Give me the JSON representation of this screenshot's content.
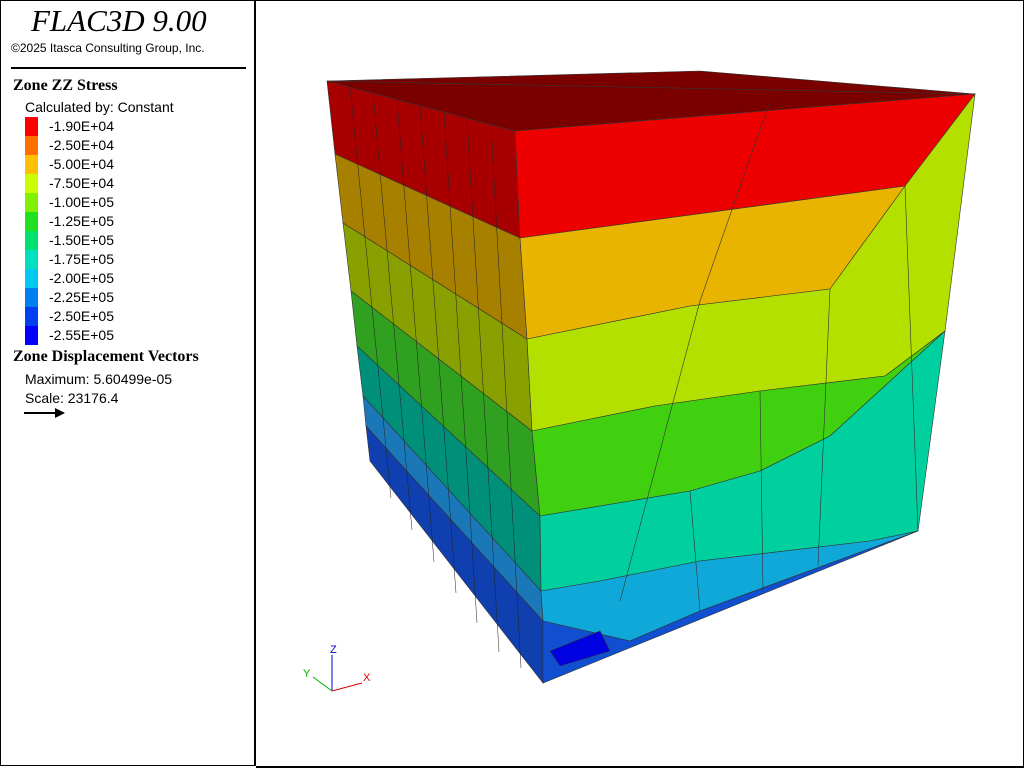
{
  "header": {
    "title": "FLAC3D 9.00",
    "copyright": "©2025 Itasca Consulting Group, Inc."
  },
  "stress_legend": {
    "title": "Zone ZZ Stress",
    "subtitle": "Calculated by: Constant",
    "entries": [
      {
        "label": "-1.90E+04",
        "color": "#ff0000"
      },
      {
        "label": "-2.50E+04",
        "color": "#ff7000"
      },
      {
        "label": "-5.00E+04",
        "color": "#ffc000"
      },
      {
        "label": "-7.50E+04",
        "color": "#c8ff00"
      },
      {
        "label": "-1.00E+05",
        "color": "#80f000"
      },
      {
        "label": "-1.25E+05",
        "color": "#20e020"
      },
      {
        "label": "-1.50E+05",
        "color": "#00e070"
      },
      {
        "label": "-1.75E+05",
        "color": "#00e0c0"
      },
      {
        "label": "-2.00E+05",
        "color": "#00c8f0"
      },
      {
        "label": "-2.25E+05",
        "color": "#0080f0"
      },
      {
        "label": "-2.50E+05",
        "color": "#0040f0"
      },
      {
        "label": "-2.55E+05",
        "color": "#0000ff"
      }
    ]
  },
  "vector_legend": {
    "title": "Zone Displacement Vectors",
    "maximum": "Maximum: 5.60499e-05",
    "scale": "Scale: 23176.4"
  },
  "view": {
    "axes": [
      "Z",
      "Y",
      "X"
    ]
  }
}
